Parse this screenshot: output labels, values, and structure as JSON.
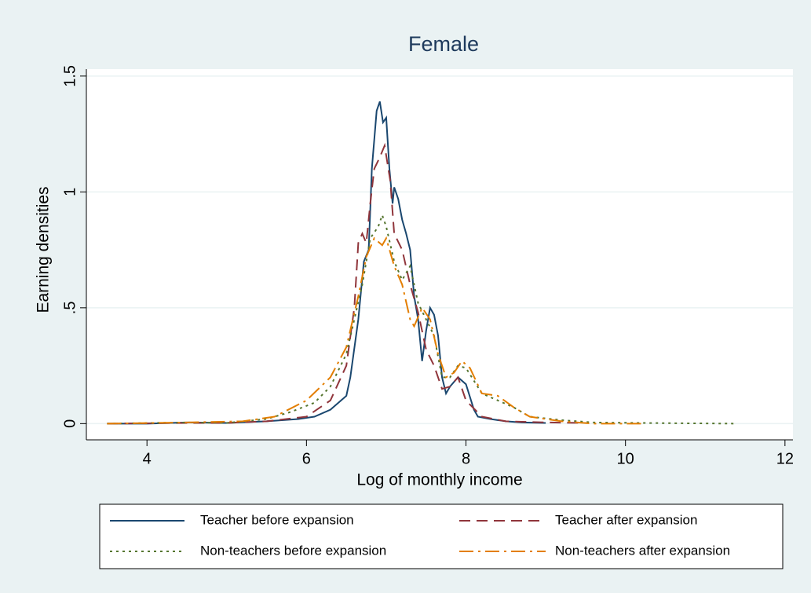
{
  "chart_data": {
    "type": "line",
    "title": "Female",
    "xlabel": "Log of monthly income",
    "ylabel": "Earning densities",
    "xlim": [
      3.24,
      12.1
    ],
    "ylim": [
      -0.07,
      1.53
    ],
    "xticks": [
      4,
      6,
      8,
      10,
      12
    ],
    "yticks": [
      0,
      {
        "value": 0.5,
        "label": ".5"
      },
      1,
      1.5
    ],
    "grid": true,
    "legend": "bottom",
    "series": [
      {
        "name": "Teacher before expansion",
        "color": "#1a476f",
        "dash": "solid",
        "x": [
          3.5,
          4.0,
          4.5,
          5.0,
          5.5,
          5.9,
          6.1,
          6.3,
          6.5,
          6.55,
          6.65,
          6.72,
          6.78,
          6.82,
          6.88,
          6.92,
          6.96,
          7.0,
          7.04,
          7.08,
          7.1,
          7.15,
          7.2,
          7.25,
          7.3,
          7.35,
          7.4,
          7.45,
          7.5,
          7.55,
          7.6,
          7.65,
          7.7,
          7.75,
          7.8,
          7.9,
          8.0,
          8.1,
          8.15,
          8.3,
          8.5,
          8.7,
          9.0
        ],
        "values": [
          0,
          0,
          0.005,
          0.003,
          0.01,
          0.02,
          0.03,
          0.06,
          0.12,
          0.2,
          0.45,
          0.7,
          0.75,
          1.1,
          1.35,
          1.39,
          1.3,
          1.32,
          1.1,
          0.95,
          1.02,
          0.97,
          0.88,
          0.82,
          0.75,
          0.55,
          0.45,
          0.27,
          0.4,
          0.5,
          0.47,
          0.38,
          0.2,
          0.13,
          0.16,
          0.2,
          0.17,
          0.06,
          0.03,
          0.02,
          0.01,
          0.005,
          0.003
        ]
      },
      {
        "name": "Teacher after expansion",
        "color": "#90353b",
        "dash": "dash",
        "x": [
          3.5,
          4.5,
          5.0,
          5.5,
          6.0,
          6.3,
          6.5,
          6.6,
          6.65,
          6.7,
          6.75,
          6.8,
          6.85,
          6.92,
          6.98,
          7.05,
          7.1,
          7.2,
          7.3,
          7.4,
          7.5,
          7.6,
          7.7,
          7.8,
          7.9,
          8.0,
          8.2,
          8.5,
          9.0,
          9.5
        ],
        "values": [
          0,
          0.003,
          0.003,
          0.01,
          0.03,
          0.1,
          0.25,
          0.5,
          0.78,
          0.82,
          0.78,
          0.95,
          1.1,
          1.15,
          1.2,
          1.05,
          0.82,
          0.75,
          0.6,
          0.48,
          0.32,
          0.25,
          0.15,
          0.16,
          0.2,
          0.1,
          0.03,
          0.01,
          0.005,
          0.003
        ]
      },
      {
        "name": "Non-teachers before expansion",
        "color": "#55752f",
        "dash": "dot",
        "x": [
          3.5,
          4.5,
          5.0,
          5.5,
          5.8,
          6.1,
          6.3,
          6.5,
          6.7,
          6.8,
          6.9,
          6.95,
          7.0,
          7.1,
          7.2,
          7.3,
          7.4,
          7.5,
          7.6,
          7.7,
          7.8,
          7.9,
          8.0,
          8.2,
          8.4,
          8.6,
          8.8,
          9.2,
          9.6,
          10.5,
          11.4
        ],
        "values": [
          0,
          0.005,
          0.003,
          0.02,
          0.05,
          0.09,
          0.16,
          0.3,
          0.6,
          0.8,
          0.85,
          0.9,
          0.85,
          0.7,
          0.62,
          0.68,
          0.52,
          0.45,
          0.38,
          0.2,
          0.2,
          0.25,
          0.24,
          0.13,
          0.1,
          0.07,
          0.03,
          0.015,
          0.005,
          0.002,
          0
        ]
      },
      {
        "name": "Non-teachers after expansion",
        "color": "#e37e00",
        "dash": "dashdot",
        "x": [
          3.5,
          4.5,
          5.2,
          5.6,
          6.0,
          6.3,
          6.5,
          6.65,
          6.75,
          6.85,
          6.95,
          7.0,
          7.1,
          7.2,
          7.3,
          7.35,
          7.45,
          7.55,
          7.65,
          7.75,
          7.85,
          7.95,
          8.05,
          8.2,
          8.4,
          8.6,
          8.8,
          9.2,
          9.6,
          10.2
        ],
        "values": [
          0,
          0.005,
          0.01,
          0.03,
          0.1,
          0.2,
          0.33,
          0.55,
          0.72,
          0.8,
          0.77,
          0.8,
          0.68,
          0.6,
          0.45,
          0.42,
          0.5,
          0.45,
          0.3,
          0.2,
          0.22,
          0.27,
          0.24,
          0.13,
          0.12,
          0.07,
          0.03,
          0.01,
          0,
          0
        ]
      }
    ]
  }
}
